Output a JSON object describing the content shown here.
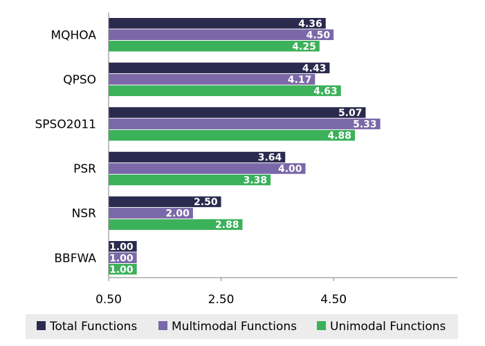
{
  "chart_data": {
    "type": "bar",
    "orientation": "horizontal",
    "categories": [
      "MQHOA",
      "QPSO",
      "SPSO2011",
      "PSR",
      "NSR",
      "BBFWA"
    ],
    "series": [
      {
        "name": "Total Functions",
        "color": "#2b2b4f",
        "values": [
          4.36,
          4.43,
          5.07,
          3.64,
          2.5,
          1.0
        ],
        "labels": [
          "4.36",
          "4.43",
          "5.07",
          "3.64",
          "2.50",
          "1.00"
        ]
      },
      {
        "name": "Multimodal Functions",
        "color": "#7b68a8",
        "values": [
          4.5,
          4.17,
          5.33,
          4.0,
          2.0,
          1.0
        ],
        "labels": [
          "4.50",
          "4.17",
          "5.33",
          "4.00",
          "2.00",
          "1.00"
        ]
      },
      {
        "name": "Unimodal Functions",
        "color": "#3bb15a",
        "values": [
          4.25,
          4.63,
          4.88,
          3.38,
          2.88,
          1.0
        ],
        "labels": [
          "4.25",
          "4.63",
          "4.88",
          "3.38",
          "2.88",
          "1.00"
        ]
      }
    ],
    "xlim": [
      0.5,
      6.7
    ],
    "xticks": [
      0.5,
      2.5,
      4.5
    ],
    "xtick_labels": [
      "0.50",
      "2.50",
      "4.50"
    ],
    "legend_position": "bottom",
    "grid": false
  }
}
